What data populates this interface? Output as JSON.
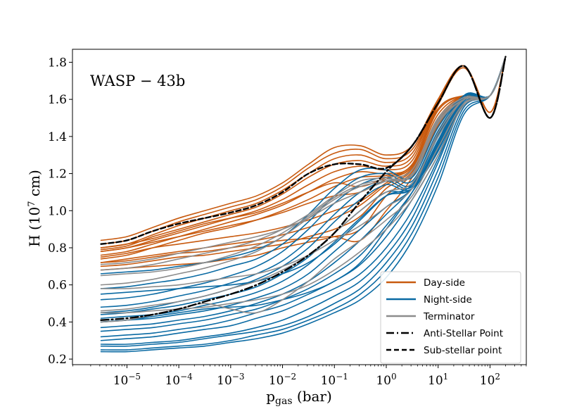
{
  "chart_data": {
    "type": "line",
    "title": "",
    "annotation": "WASP − 43b",
    "xlabel": {
      "main": "p",
      "sub": "gas",
      "unit": " (bar)"
    },
    "ylabel": {
      "main": "H (10",
      "sup": "7",
      "unit": " cm)"
    },
    "xscale": "log",
    "xlim_log10": [
      -6.05,
      2.7
    ],
    "ylim": [
      0.17,
      1.87
    ],
    "x_ticks": [
      {
        "log10": -5,
        "base": "10",
        "exp": "−5"
      },
      {
        "log10": -4,
        "base": "10",
        "exp": "−4"
      },
      {
        "log10": -3,
        "base": "10",
        "exp": "−3"
      },
      {
        "log10": -2,
        "base": "10",
        "exp": "−2"
      },
      {
        "log10": -1,
        "base": "10",
        "exp": "−1"
      },
      {
        "log10": 0,
        "base": "10",
        "exp": "0"
      },
      {
        "log10": 1,
        "base": "10",
        "exp": "1"
      },
      {
        "log10": 2,
        "base": "10",
        "exp": "2"
      }
    ],
    "y_ticks": [
      "0.2",
      "0.4",
      "0.6",
      "0.8",
      "1.0",
      "1.2",
      "1.4",
      "1.6",
      "1.8"
    ],
    "legend": {
      "placement": "lower-right",
      "entries": [
        {
          "label": "Day-side",
          "color": "#c85a0f",
          "style": "solid"
        },
        {
          "label": "Night-side",
          "color": "#0a6aa3",
          "style": "solid"
        },
        {
          "label": "Terminator",
          "color": "#8c8c8c",
          "style": "solid"
        },
        {
          "label": "Anti-Stellar Point",
          "color": "#000000",
          "style": "dashdot"
        },
        {
          "label": "Sub-stellar point",
          "color": "#000000",
          "style": "dashed"
        }
      ]
    },
    "x_log10": [
      -5.5,
      -5,
      -4.5,
      -4,
      -3.5,
      -3,
      -2.5,
      -2,
      -1.5,
      -1,
      -0.5,
      0,
      0.5,
      1,
      1.5,
      2,
      2.3
    ],
    "series": [
      {
        "name": "Day-side",
        "group": "day",
        "values": [
          0.84,
          0.86,
          0.91,
          0.96,
          1.0,
          1.04,
          1.08,
          1.15,
          1.25,
          1.34,
          1.35,
          1.3,
          1.35,
          1.6,
          1.78,
          1.53,
          1.83
        ]
      },
      {
        "name": "Day-side",
        "group": "day",
        "values": [
          0.82,
          0.84,
          0.89,
          0.94,
          0.98,
          1.02,
          1.06,
          1.13,
          1.23,
          1.31,
          1.33,
          1.28,
          1.33,
          1.6,
          1.78,
          1.53,
          1.83
        ]
      },
      {
        "name": "Day-side",
        "group": "day",
        "values": [
          0.8,
          0.82,
          0.87,
          0.92,
          0.96,
          1.0,
          1.04,
          1.11,
          1.2,
          1.28,
          1.3,
          1.26,
          1.31,
          1.6,
          1.78,
          1.53,
          1.83
        ]
      },
      {
        "name": "Day-side",
        "group": "day",
        "values": [
          0.79,
          0.81,
          0.86,
          0.9,
          0.94,
          0.98,
          1.02,
          1.09,
          1.18,
          1.25,
          1.27,
          1.24,
          1.29,
          1.6,
          1.78,
          1.53,
          1.83
        ]
      },
      {
        "name": "Day-side",
        "group": "day",
        "values": [
          0.78,
          0.8,
          0.84,
          0.88,
          0.92,
          0.96,
          1.0,
          1.06,
          1.14,
          1.21,
          1.24,
          1.22,
          1.27,
          1.59,
          1.78,
          1.53,
          1.83
        ]
      },
      {
        "name": "Day-side",
        "group": "day",
        "values": [
          0.76,
          0.78,
          0.82,
          0.86,
          0.9,
          0.94,
          0.98,
          1.03,
          1.1,
          1.17,
          1.21,
          1.2,
          1.25,
          1.58,
          1.77,
          1.53,
          1.83
        ]
      },
      {
        "name": "Day-side",
        "group": "day",
        "values": [
          0.74,
          0.76,
          0.8,
          0.84,
          0.88,
          0.91,
          0.95,
          1.0,
          1.06,
          1.13,
          1.18,
          1.19,
          1.24,
          1.57,
          1.77,
          1.53,
          1.83
        ]
      },
      {
        "name": "Day-side",
        "group": "day",
        "values": [
          0.8,
          0.82,
          0.85,
          0.89,
          0.93,
          0.96,
          0.99,
          1.04,
          1.1,
          1.15,
          1.13,
          1.18,
          1.25,
          1.55,
          1.62,
          1.62,
          1.83
        ]
      },
      {
        "name": "Day-side",
        "group": "day",
        "values": [
          0.78,
          0.8,
          0.83,
          0.86,
          0.89,
          0.92,
          0.95,
          0.99,
          1.04,
          1.08,
          1.1,
          1.17,
          1.24,
          1.54,
          1.62,
          1.62,
          1.83
        ]
      },
      {
        "name": "Day-side",
        "group": "day",
        "values": [
          0.75,
          0.77,
          0.8,
          0.82,
          0.84,
          0.86,
          0.88,
          0.91,
          0.95,
          1.0,
          1.05,
          1.15,
          1.23,
          1.52,
          1.62,
          1.62,
          1.83
        ]
      },
      {
        "name": "Day-side",
        "group": "day",
        "values": [
          0.72,
          0.74,
          0.76,
          0.78,
          0.8,
          0.82,
          0.84,
          0.87,
          0.91,
          0.96,
          1.03,
          1.14,
          1.22,
          1.5,
          1.62,
          1.62,
          1.83
        ]
      },
      {
        "name": "Day-side",
        "group": "day",
        "values": [
          0.7,
          0.71,
          0.73,
          0.75,
          0.76,
          0.78,
          0.8,
          0.82,
          0.86,
          0.9,
          0.97,
          1.12,
          1.21,
          1.48,
          1.62,
          1.62,
          1.83
        ]
      },
      {
        "name": "Day-side",
        "group": "day",
        "values": [
          0.68,
          0.69,
          0.7,
          0.71,
          0.72,
          0.74,
          0.76,
          0.8,
          0.83,
          0.86,
          0.9,
          1.08,
          1.2,
          1.46,
          1.62,
          1.62,
          1.83
        ]
      },
      {
        "name": "Day-side",
        "group": "day",
        "values": [
          0.72,
          0.73,
          0.75,
          0.77,
          0.78,
          0.8,
          0.82,
          0.84,
          0.85,
          0.86,
          0.84,
          1.0,
          1.18,
          1.45,
          1.62,
          1.62,
          1.83
        ]
      },
      {
        "name": "Night-side",
        "group": "night",
        "values": [
          0.66,
          0.67,
          0.68,
          0.7,
          0.72,
          0.75,
          0.79,
          0.86,
          0.98,
          1.12,
          1.22,
          1.22,
          1.18,
          1.45,
          1.62,
          1.62,
          1.83
        ]
      },
      {
        "name": "Night-side",
        "group": "night",
        "values": [
          0.58,
          0.59,
          0.61,
          0.63,
          0.66,
          0.7,
          0.74,
          0.82,
          0.94,
          1.08,
          1.18,
          1.2,
          1.16,
          1.43,
          1.62,
          1.62,
          1.83
        ]
      },
      {
        "name": "Night-side",
        "group": "night",
        "values": [
          0.52,
          0.53,
          0.55,
          0.58,
          0.61,
          0.65,
          0.7,
          0.78,
          0.9,
          1.04,
          1.14,
          1.18,
          1.14,
          1.41,
          1.62,
          1.62,
          1.83
        ]
      },
      {
        "name": "Night-side",
        "group": "night",
        "values": [
          0.48,
          0.49,
          0.51,
          0.54,
          0.57,
          0.61,
          0.66,
          0.73,
          0.84,
          0.98,
          1.1,
          1.16,
          1.13,
          1.4,
          1.62,
          1.62,
          1.83
        ]
      },
      {
        "name": "Night-side",
        "group": "night",
        "values": [
          0.45,
          0.46,
          0.48,
          0.51,
          0.54,
          0.58,
          0.63,
          0.7,
          0.8,
          0.94,
          1.06,
          1.14,
          1.12,
          1.38,
          1.62,
          1.62,
          1.83
        ]
      },
      {
        "name": "Night-side",
        "group": "night",
        "values": [
          0.44,
          0.45,
          0.47,
          0.49,
          0.52,
          0.55,
          0.59,
          0.66,
          0.75,
          0.88,
          1.0,
          1.1,
          1.12,
          1.37,
          1.62,
          1.62,
          1.83
        ]
      },
      {
        "name": "Night-side",
        "group": "night",
        "values": [
          0.42,
          0.43,
          0.44,
          0.46,
          0.49,
          0.52,
          0.56,
          0.62,
          0.71,
          0.83,
          0.96,
          1.08,
          1.12,
          1.35,
          1.62,
          1.62,
          1.83
        ]
      },
      {
        "name": "Night-side",
        "group": "night",
        "values": [
          0.4,
          0.41,
          0.42,
          0.44,
          0.46,
          0.49,
          0.53,
          0.58,
          0.66,
          0.78,
          0.9,
          1.02,
          1.12,
          1.34,
          1.62,
          1.62,
          1.83
        ]
      },
      {
        "name": "Night-side",
        "group": "night",
        "values": [
          0.37,
          0.38,
          0.39,
          0.41,
          0.43,
          0.46,
          0.5,
          0.55,
          0.62,
          0.72,
          0.84,
          0.98,
          1.12,
          1.33,
          1.61,
          1.62,
          1.83
        ]
      },
      {
        "name": "Night-side",
        "group": "night",
        "values": [
          0.35,
          0.36,
          0.37,
          0.39,
          0.41,
          0.44,
          0.47,
          0.52,
          0.58,
          0.66,
          0.76,
          0.92,
          1.1,
          1.32,
          1.61,
          1.62,
          1.83
        ]
      },
      {
        "name": "Night-side",
        "group": "night",
        "values": [
          0.32,
          0.33,
          0.34,
          0.36,
          0.38,
          0.41,
          0.45,
          0.49,
          0.55,
          0.62,
          0.71,
          0.86,
          1.06,
          1.3,
          1.6,
          1.62,
          1.83
        ]
      },
      {
        "name": "Night-side",
        "group": "night",
        "values": [
          0.3,
          0.31,
          0.32,
          0.34,
          0.36,
          0.38,
          0.42,
          0.46,
          0.52,
          0.58,
          0.66,
          0.8,
          1.0,
          1.28,
          1.59,
          1.62,
          1.83
        ]
      },
      {
        "name": "Night-side",
        "group": "night",
        "values": [
          0.28,
          0.28,
          0.29,
          0.3,
          0.32,
          0.34,
          0.37,
          0.41,
          0.47,
          0.54,
          0.62,
          0.76,
          0.96,
          1.26,
          1.58,
          1.62,
          1.83
        ]
      },
      {
        "name": "Night-side",
        "group": "night",
        "values": [
          0.27,
          0.27,
          0.28,
          0.29,
          0.31,
          0.33,
          0.35,
          0.38,
          0.43,
          0.5,
          0.58,
          0.72,
          0.92,
          1.22,
          1.56,
          1.62,
          1.83
        ]
      },
      {
        "name": "Night-side",
        "group": "night",
        "values": [
          0.25,
          0.25,
          0.26,
          0.27,
          0.28,
          0.3,
          0.33,
          0.36,
          0.41,
          0.47,
          0.55,
          0.68,
          0.88,
          1.18,
          1.54,
          1.62,
          1.83
        ]
      },
      {
        "name": "Night-side",
        "group": "night",
        "values": [
          0.24,
          0.24,
          0.25,
          0.26,
          0.27,
          0.29,
          0.31,
          0.34,
          0.39,
          0.45,
          0.52,
          0.64,
          0.84,
          1.14,
          1.52,
          1.62,
          1.83
        ]
      },
      {
        "name": "Night-side",
        "group": "night",
        "values": [
          0.4,
          0.41,
          0.43,
          0.45,
          0.47,
          0.48,
          0.49,
          0.52,
          0.56,
          0.62,
          0.72,
          0.9,
          1.1,
          1.36,
          1.62,
          1.62,
          1.83
        ]
      },
      {
        "name": "Night-side",
        "group": "night",
        "values": [
          0.55,
          0.56,
          0.57,
          0.58,
          0.59,
          0.6,
          0.62,
          0.66,
          0.72,
          0.82,
          0.95,
          1.08,
          1.14,
          1.4,
          1.62,
          1.62,
          1.83
        ]
      },
      {
        "name": "Terminator",
        "group": "terminator",
        "values": [
          0.71,
          0.72,
          0.74,
          0.77,
          0.8,
          0.83,
          0.86,
          0.9,
          0.96,
          1.04,
          1.1,
          1.16,
          1.2,
          1.48,
          1.6,
          1.62,
          1.83
        ]
      },
      {
        "name": "Terminator",
        "group": "terminator",
        "values": [
          0.68,
          0.69,
          0.71,
          0.74,
          0.77,
          0.8,
          0.84,
          0.9,
          0.98,
          1.08,
          1.16,
          1.18,
          1.22,
          1.5,
          1.61,
          1.62,
          1.83
        ]
      },
      {
        "name": "Terminator",
        "group": "terminator",
        "values": [
          0.65,
          0.66,
          0.67,
          0.69,
          0.72,
          0.76,
          0.81,
          0.88,
          0.97,
          1.07,
          1.14,
          1.17,
          1.2,
          1.49,
          1.61,
          1.62,
          1.83
        ]
      },
      {
        "name": "Terminator",
        "group": "terminator",
        "values": [
          0.6,
          0.61,
          0.63,
          0.66,
          0.69,
          0.73,
          0.78,
          0.86,
          0.96,
          1.06,
          1.13,
          1.16,
          1.19,
          1.47,
          1.6,
          1.62,
          1.83
        ]
      },
      {
        "name": "Terminator",
        "group": "terminator",
        "values": [
          0.58,
          0.58,
          0.59,
          0.6,
          0.62,
          0.64,
          0.66,
          0.7,
          0.76,
          0.84,
          0.92,
          1.02,
          1.12,
          1.42,
          1.6,
          1.62,
          1.83
        ]
      },
      {
        "name": "Terminator",
        "group": "terminator",
        "values": [
          0.46,
          0.47,
          0.49,
          0.51,
          0.54,
          0.58,
          0.62,
          0.68,
          0.76,
          0.88,
          1.0,
          1.1,
          1.15,
          1.4,
          1.6,
          1.62,
          1.83
        ]
      },
      {
        "name": "Terminator",
        "group": "terminator",
        "values": [
          0.4,
          0.41,
          0.44,
          0.47,
          0.5,
          0.47,
          0.45,
          0.52,
          0.62,
          0.74,
          0.84,
          0.95,
          1.08,
          1.34,
          1.58,
          1.62,
          1.83
        ]
      },
      {
        "name": "Terminator",
        "group": "terminator",
        "values": [
          0.45,
          0.45,
          0.46,
          0.47,
          0.48,
          0.5,
          0.52,
          0.55,
          0.6,
          0.68,
          0.78,
          0.9,
          1.06,
          1.3,
          1.57,
          1.62,
          1.83
        ]
      },
      {
        "name": "Anti-Stellar Point",
        "group": "anti",
        "values": [
          0.41,
          0.42,
          0.44,
          0.47,
          0.51,
          0.55,
          0.6,
          0.67,
          0.76,
          0.88,
          1.05,
          1.21,
          1.35,
          1.58,
          1.78,
          1.5,
          1.83
        ]
      },
      {
        "name": "Sub-stellar point",
        "group": "sub",
        "values": [
          0.82,
          0.84,
          0.89,
          0.93,
          0.96,
          0.99,
          1.03,
          1.1,
          1.2,
          1.25,
          1.25,
          1.23,
          1.35,
          1.58,
          1.78,
          1.5,
          1.83
        ]
      }
    ]
  }
}
